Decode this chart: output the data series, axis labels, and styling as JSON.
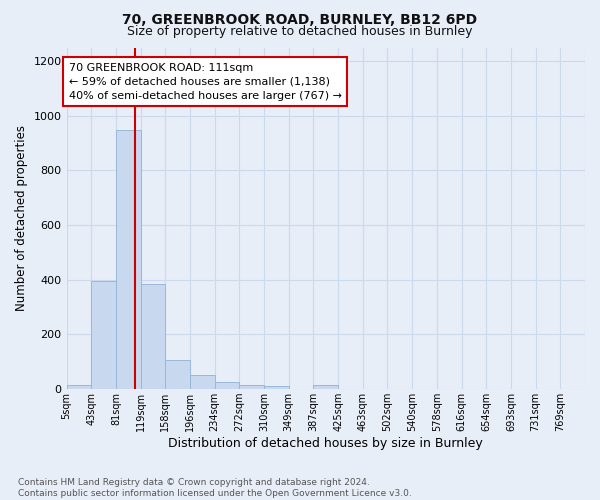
{
  "title1": "70, GREENBROOK ROAD, BURNLEY, BB12 6PD",
  "title2": "Size of property relative to detached houses in Burnley",
  "xlabel": "Distribution of detached houses by size in Burnley",
  "ylabel": "Number of detached properties",
  "footnote": "Contains HM Land Registry data © Crown copyright and database right 2024.\nContains public sector information licensed under the Open Government Licence v3.0.",
  "bin_labels": [
    "5sqm",
    "43sqm",
    "81sqm",
    "119sqm",
    "158sqm",
    "196sqm",
    "234sqm",
    "272sqm",
    "310sqm",
    "349sqm",
    "387sqm",
    "425sqm",
    "463sqm",
    "502sqm",
    "540sqm",
    "578sqm",
    "616sqm",
    "654sqm",
    "693sqm",
    "731sqm",
    "769sqm"
  ],
  "bar_heights": [
    15,
    395,
    950,
    385,
    105,
    50,
    25,
    15,
    12,
    0,
    15,
    0,
    0,
    0,
    0,
    0,
    0,
    0,
    0,
    0,
    0
  ],
  "bar_color": "#c8d8ee",
  "bar_edge_color": "#99b8d8",
  "grid_color": "#ccd8ec",
  "background_color": "#e8eef8",
  "annotation_text": "70 GREENBROOK ROAD: 111sqm\n← 59% of detached houses are smaller (1,138)\n40% of semi-detached houses are larger (767) →",
  "annotation_box_facecolor": "#ffffff",
  "annotation_box_edgecolor": "#cc0000",
  "red_line_color": "#cc0000",
  "ylim": [
    0,
    1250
  ],
  "yticks": [
    0,
    200,
    400,
    600,
    800,
    1000,
    1200
  ],
  "property_size_sqm": 111,
  "bin_start_sqm": [
    5,
    43,
    81,
    119,
    158,
    196,
    234,
    272,
    310,
    349,
    387,
    425,
    463,
    502,
    540,
    578,
    616,
    654,
    693,
    731,
    769
  ]
}
